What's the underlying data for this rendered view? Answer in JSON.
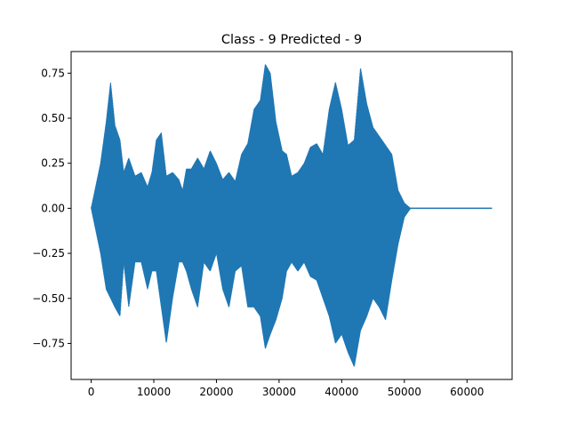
{
  "chart_data": {
    "type": "line",
    "title": "Class - 9 Predicted - 9",
    "xlabel": "",
    "ylabel": "",
    "xlim": [
      -3200,
      67200
    ],
    "ylim": [
      -0.95,
      0.87
    ],
    "xticks": [
      0,
      10000,
      20000,
      30000,
      40000,
      50000,
      60000
    ],
    "xtick_labels": [
      "0",
      "10000",
      "20000",
      "30000",
      "40000",
      "50000",
      "60000"
    ],
    "yticks": [
      -0.75,
      -0.5,
      -0.25,
      0.0,
      0.25,
      0.5,
      0.75
    ],
    "ytick_labels": [
      "−0.75",
      "−0.50",
      "−0.25",
      "0.00",
      "0.25",
      "0.50",
      "0.75"
    ],
    "grid": false,
    "legend": "none",
    "series_color": "#1f77b4",
    "series": [
      {
        "x": [
          0,
          1500,
          2400,
          3100,
          3800,
          4600,
          5200,
          6000,
          7000,
          8000,
          9000,
          9700,
          10400,
          11200,
          12000,
          13000,
          14000,
          14600,
          15200,
          16000,
          17000,
          18000,
          19000,
          20000,
          21000,
          22000,
          23000,
          24000,
          25000,
          26000,
          27000,
          27800,
          28600,
          29500,
          30500,
          31200,
          32000,
          33000,
          34000,
          35000,
          36000,
          37000,
          38000,
          39000,
          40000,
          41000,
          42000,
          43000,
          44000,
          45000,
          46000,
          47000,
          48000,
          49000,
          50000,
          51000,
          64000
        ],
        "upper": [
          0.0,
          0.25,
          0.48,
          0.7,
          0.46,
          0.38,
          0.2,
          0.28,
          0.18,
          0.2,
          0.12,
          0.2,
          0.38,
          0.42,
          0.18,
          0.2,
          0.16,
          0.1,
          0.22,
          0.22,
          0.28,
          0.22,
          0.32,
          0.25,
          0.16,
          0.2,
          0.15,
          0.3,
          0.36,
          0.55,
          0.6,
          0.8,
          0.75,
          0.48,
          0.32,
          0.3,
          0.18,
          0.2,
          0.25,
          0.34,
          0.36,
          0.3,
          0.55,
          0.7,
          0.55,
          0.35,
          0.38,
          0.78,
          0.58,
          0.45,
          0.4,
          0.35,
          0.3,
          0.1,
          0.03,
          0.0,
          0.0
        ],
        "lower": [
          0.0,
          -0.25,
          -0.45,
          -0.5,
          -0.55,
          -0.6,
          -0.3,
          -0.55,
          -0.3,
          -0.3,
          -0.45,
          -0.35,
          -0.35,
          -0.55,
          -0.75,
          -0.5,
          -0.3,
          -0.3,
          -0.35,
          -0.45,
          -0.55,
          -0.3,
          -0.35,
          -0.25,
          -0.45,
          -0.55,
          -0.35,
          -0.32,
          -0.55,
          -0.55,
          -0.6,
          -0.78,
          -0.7,
          -0.62,
          -0.5,
          -0.35,
          -0.3,
          -0.35,
          -0.3,
          -0.38,
          -0.4,
          -0.5,
          -0.6,
          -0.75,
          -0.7,
          -0.8,
          -0.88,
          -0.68,
          -0.6,
          -0.5,
          -0.55,
          -0.62,
          -0.4,
          -0.2,
          -0.05,
          0.0,
          0.0
        ]
      }
    ]
  }
}
